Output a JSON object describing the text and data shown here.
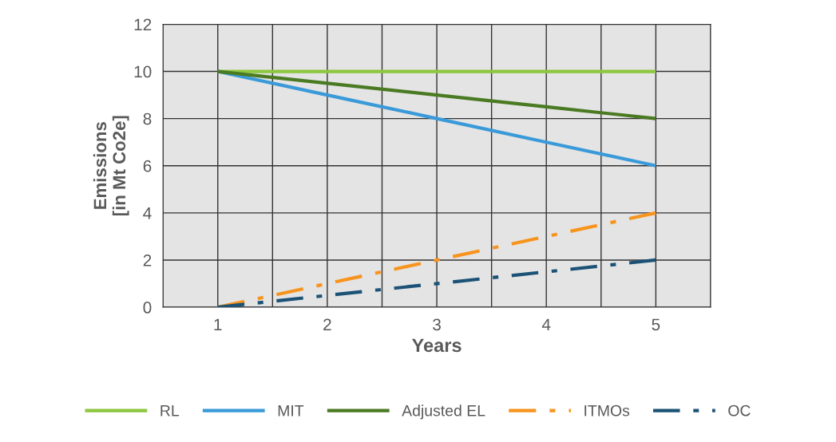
{
  "chart_data": {
    "type": "line",
    "xlabel": "Years",
    "ylabel": "Emissions\n[in Mt Co2e]",
    "categories": [
      "1",
      "2",
      "3",
      "4",
      "5"
    ],
    "series": [
      {
        "name": "RL",
        "color": "#8dc63f",
        "values": [
          10,
          10,
          10,
          10,
          10
        ],
        "line_style": "solid"
      },
      {
        "name": "MIT",
        "color": "#3a9ad9",
        "values": [
          10,
          9,
          8,
          7,
          6
        ],
        "line_style": "solid"
      },
      {
        "name": "Adjusted EL",
        "color": "#4a7a22",
        "values": [
          10,
          9.5,
          9,
          8.5,
          8
        ],
        "line_style": "solid"
      },
      {
        "name": "ITMOs",
        "color": "#f7941d",
        "values": [
          0,
          1,
          2,
          3,
          4
        ],
        "line_style": "dashdot"
      },
      {
        "name": "OC",
        "color": "#1b5276",
        "values": [
          0,
          0.5,
          1,
          1.5,
          2
        ],
        "line_style": "dashdot"
      }
    ],
    "ylim": [
      0,
      12
    ],
    "yticks": [
      0,
      2,
      4,
      6,
      8,
      10,
      12
    ],
    "grid": true,
    "legend": "bottom",
    "marker": "none"
  }
}
